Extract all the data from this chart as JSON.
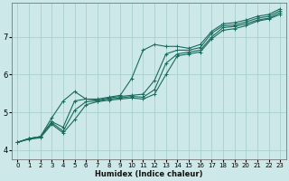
{
  "background_color": "#cce8e8",
  "grid_color": "#aacece",
  "line_color": "#1a6b5e",
  "xlabel": "Humidex (Indice chaleur)",
  "xlim": [
    -0.5,
    23.5
  ],
  "ylim": [
    3.75,
    7.9
  ],
  "xticks": [
    0,
    1,
    2,
    3,
    4,
    5,
    6,
    7,
    8,
    9,
    10,
    11,
    12,
    13,
    14,
    15,
    16,
    17,
    18,
    19,
    20,
    21,
    22,
    23
  ],
  "yticks": [
    4,
    5,
    6,
    7
  ],
  "series": [
    [
      4.2,
      4.3,
      4.35,
      4.85,
      5.3,
      5.55,
      5.35,
      5.35,
      5.4,
      5.45,
      5.9,
      6.65,
      6.8,
      6.75,
      6.75,
      6.7,
      6.8,
      7.15,
      7.35,
      7.38,
      7.45,
      7.55,
      7.6,
      7.75
    ],
    [
      4.2,
      4.3,
      4.35,
      4.75,
      4.6,
      5.3,
      5.35,
      5.32,
      5.38,
      5.42,
      5.45,
      5.48,
      5.85,
      6.55,
      6.65,
      6.65,
      6.72,
      7.1,
      7.3,
      7.32,
      7.4,
      7.5,
      7.55,
      7.7
    ],
    [
      4.2,
      4.3,
      4.35,
      4.72,
      4.5,
      5.05,
      5.28,
      5.3,
      5.35,
      5.38,
      5.42,
      5.4,
      5.6,
      6.3,
      6.55,
      6.6,
      6.65,
      7.0,
      7.25,
      7.28,
      7.35,
      7.45,
      7.5,
      7.65
    ],
    [
      4.2,
      4.28,
      4.32,
      4.68,
      4.45,
      4.8,
      5.2,
      5.28,
      5.32,
      5.35,
      5.38,
      5.35,
      5.48,
      6.0,
      6.5,
      6.55,
      6.6,
      6.95,
      7.18,
      7.22,
      7.3,
      7.42,
      7.48,
      7.6
    ]
  ],
  "marker": "+",
  "markersize": 3,
  "linewidth": 0.8,
  "title_fontsize": 7,
  "xlabel_fontsize": 6,
  "tick_fontsize_x": 5,
  "tick_fontsize_y": 6
}
